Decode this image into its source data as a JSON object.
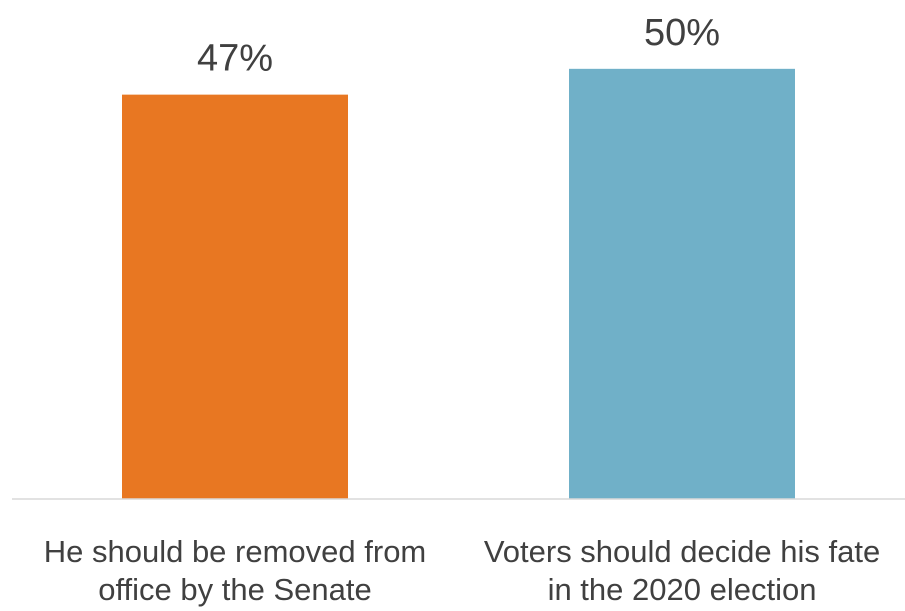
{
  "chart_data": {
    "type": "bar",
    "categories": [
      [
        "He should be removed from",
        "office by the Senate"
      ],
      [
        "Voters should decide his fate",
        "in the 2020 election"
      ]
    ],
    "values": [
      47,
      50
    ],
    "data_labels": [
      "47%",
      "50%"
    ],
    "colors": [
      "#E87722",
      "#70B0C8"
    ],
    "ylim": [
      0,
      58
    ],
    "grid": false,
    "legend": "none",
    "axis_color": "#D9D9D9"
  }
}
